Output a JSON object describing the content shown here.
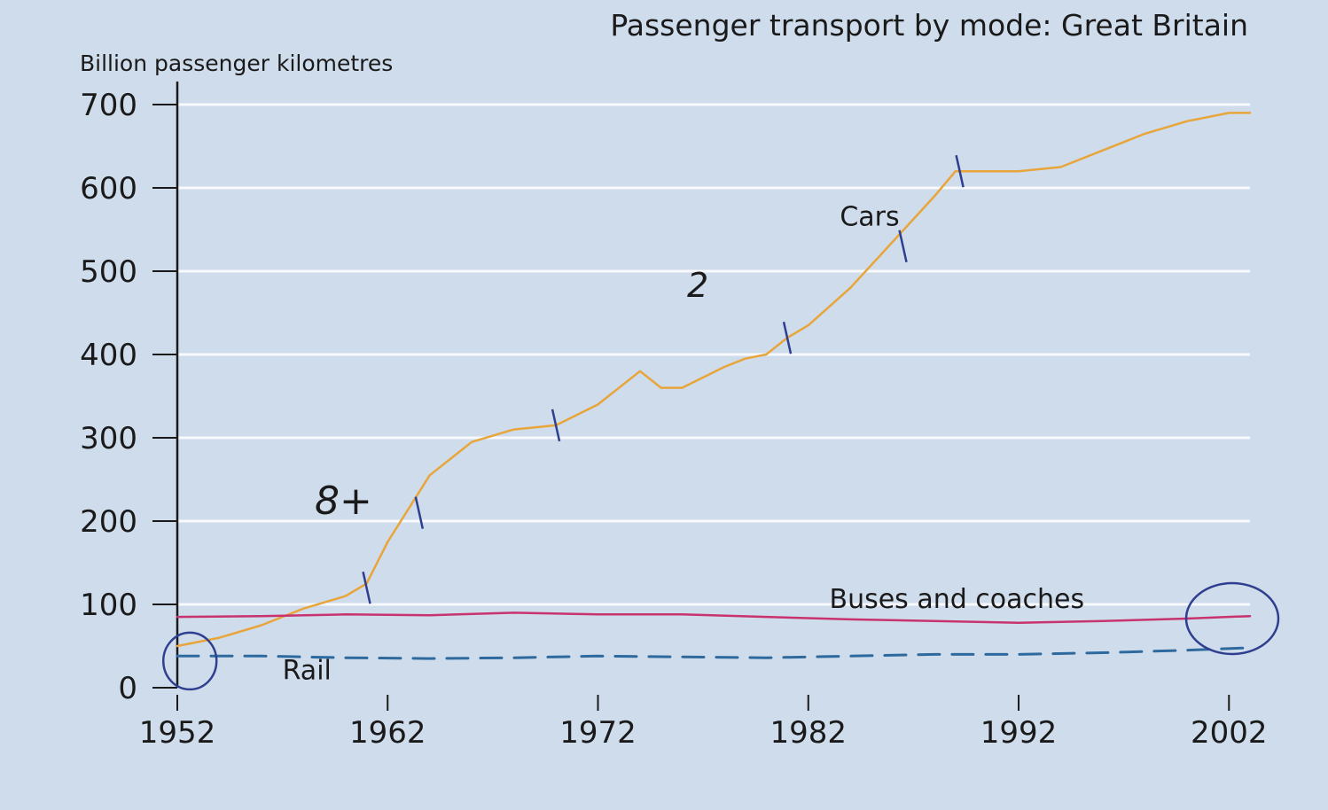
{
  "chart_data": {
    "type": "line",
    "title": "Passenger transport by mode: Great Britain",
    "ylabel": "Billion passenger kilometres",
    "xlabel": "",
    "xlim": [
      1952,
      2003
    ],
    "ylim": [
      0,
      700
    ],
    "x_ticks": [
      1952,
      1962,
      1972,
      1982,
      1992,
      2002
    ],
    "y_ticks": [
      0,
      100,
      200,
      300,
      400,
      500,
      600,
      700
    ],
    "grid": true,
    "colors": {
      "background": "#cfdcec",
      "grid": "#ffffff",
      "cars": "#e8a53a",
      "buses": "#c8326e",
      "rail": "#2f6a9e",
      "annotation": "#2f3f8f"
    },
    "series": [
      {
        "name": "Cars",
        "label_text": "Cars",
        "style": "solid",
        "x": [
          1952,
          1954,
          1956,
          1958,
          1960,
          1961,
          1962,
          1963,
          1964,
          1966,
          1968,
          1970,
          1972,
          1974,
          1975,
          1976,
          1978,
          1979,
          1980,
          1981,
          1982,
          1984,
          1986,
          1988,
          1989,
          1990,
          1992,
          1994,
          1996,
          1998,
          2000,
          2002,
          2003
        ],
        "values": [
          50,
          60,
          75,
          95,
          110,
          125,
          175,
          215,
          255,
          295,
          310,
          315,
          340,
          380,
          360,
          360,
          385,
          395,
          400,
          420,
          435,
          480,
          535,
          590,
          620,
          620,
          620,
          625,
          645,
          665,
          680,
          690,
          690
        ]
      },
      {
        "name": "Buses and coaches",
        "label_text": "Buses and coaches",
        "style": "solid",
        "x": [
          1952,
          1956,
          1960,
          1964,
          1968,
          1972,
          1976,
          1980,
          1984,
          1988,
          1992,
          1996,
          2000,
          2003
        ],
        "values": [
          85,
          86,
          88,
          87,
          90,
          88,
          88,
          85,
          82,
          80,
          78,
          80,
          83,
          86
        ]
      },
      {
        "name": "Rail",
        "label_text": "Rail",
        "style": "dashed",
        "x": [
          1952,
          1956,
          1960,
          1964,
          1968,
          1972,
          1976,
          1980,
          1984,
          1988,
          1992,
          1996,
          2000,
          2003
        ],
        "values": [
          38,
          38,
          36,
          35,
          36,
          38,
          37,
          36,
          38,
          40,
          40,
          42,
          45,
          48
        ]
      }
    ],
    "handwritten_marks": {
      "scribble_a": "2",
      "scribble_b": "8+"
    }
  }
}
